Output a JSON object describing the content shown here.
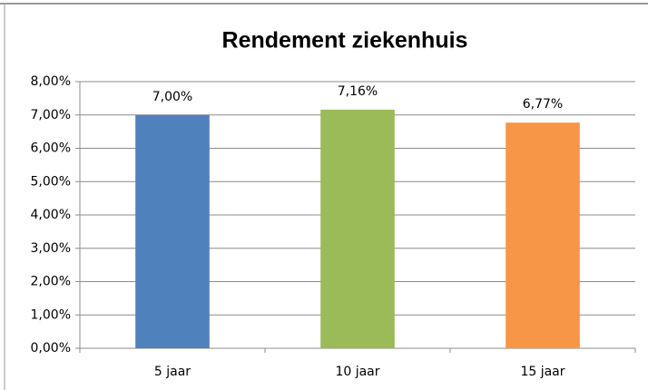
{
  "chart_data": {
    "type": "bar",
    "title": "Rendement ziekenhuis",
    "categories": [
      "5 jaar",
      "10 jaar",
      "15 jaar"
    ],
    "values": [
      7.0,
      7.16,
      6.77
    ],
    "value_labels": [
      "7,00%",
      "7,16%",
      "6,77%"
    ],
    "colors": [
      "#4f81bd",
      "#9bbb59",
      "#f79646"
    ],
    "ylim": [
      0,
      8
    ],
    "yticks": [
      {
        "value": 0,
        "label": "0,00%"
      },
      {
        "value": 1,
        "label": "1,00%"
      },
      {
        "value": 2,
        "label": "2,00%"
      },
      {
        "value": 3,
        "label": "3,00%"
      },
      {
        "value": 4,
        "label": "4,00%"
      },
      {
        "value": 5,
        "label": "5,00%"
      },
      {
        "value": 6,
        "label": "6,00%"
      },
      {
        "value": 7,
        "label": "7,00%"
      },
      {
        "value": 8,
        "label": "8,00%"
      }
    ],
    "grid": true
  }
}
